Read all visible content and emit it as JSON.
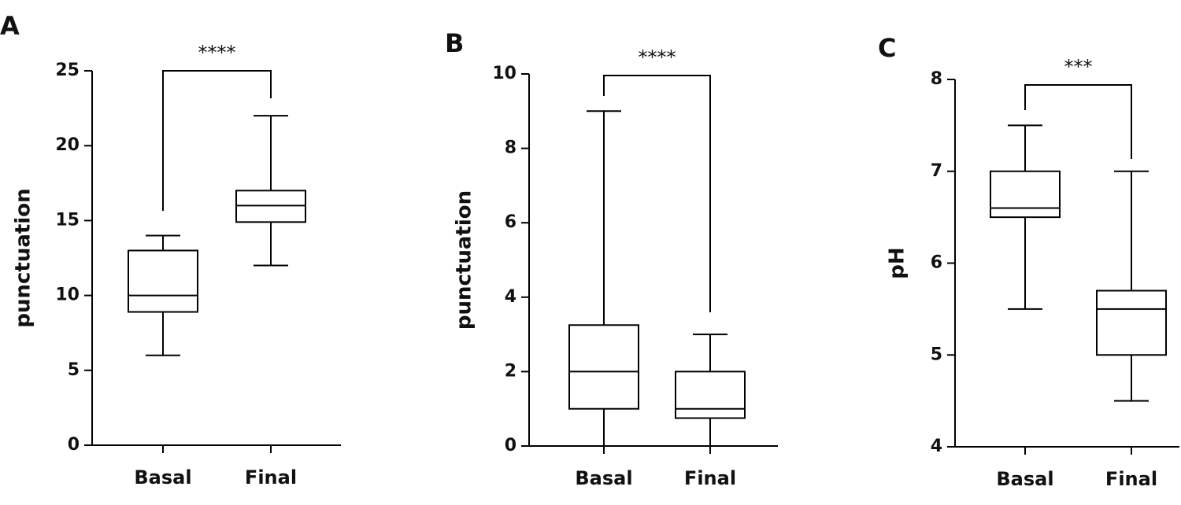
{
  "chart_data": [
    {
      "type": "box",
      "panel": "A",
      "y_label": "punctuation",
      "significance": "****",
      "categories": [
        "Basal",
        "Final"
      ],
      "stats": [
        {
          "min": 6,
          "q1": 8.9,
          "median": 10,
          "q3": 13,
          "max": 14
        },
        {
          "min": 12,
          "q1": 14.9,
          "median": 16,
          "q3": 17,
          "max": 22
        }
      ],
      "ylim": [
        0,
        25
      ],
      "yticks": [
        0,
        5,
        10,
        15,
        20,
        25
      ],
      "color": "#000000"
    },
    {
      "type": "box",
      "panel": "B",
      "y_label": "punctuation",
      "significance": "****",
      "categories": [
        "Basal",
        "Final"
      ],
      "stats": [
        {
          "min": 0,
          "q1": 1,
          "median": 2,
          "q3": 3.25,
          "max": 9
        },
        {
          "min": 0,
          "q1": 0.75,
          "median": 1,
          "q3": 2,
          "max": 3
        }
      ],
      "ylim": [
        0,
        10
      ],
      "yticks": [
        0,
        2,
        4,
        6,
        8,
        10
      ],
      "color": "#000000"
    },
    {
      "type": "box",
      "panel": "C",
      "y_label": "pH",
      "significance": "***",
      "categories": [
        "Basal",
        "Final"
      ],
      "stats": [
        {
          "min": 5.5,
          "q1": 6.5,
          "median": 6.6,
          "q3": 7,
          "max": 7.5
        },
        {
          "min": 4.5,
          "q1": 5,
          "median": 5.5,
          "q3": 5.7,
          "max": 7
        }
      ],
      "ylim": [
        4,
        8
      ],
      "yticks": [
        4,
        5,
        6,
        7,
        8
      ],
      "color": "#000000"
    }
  ]
}
